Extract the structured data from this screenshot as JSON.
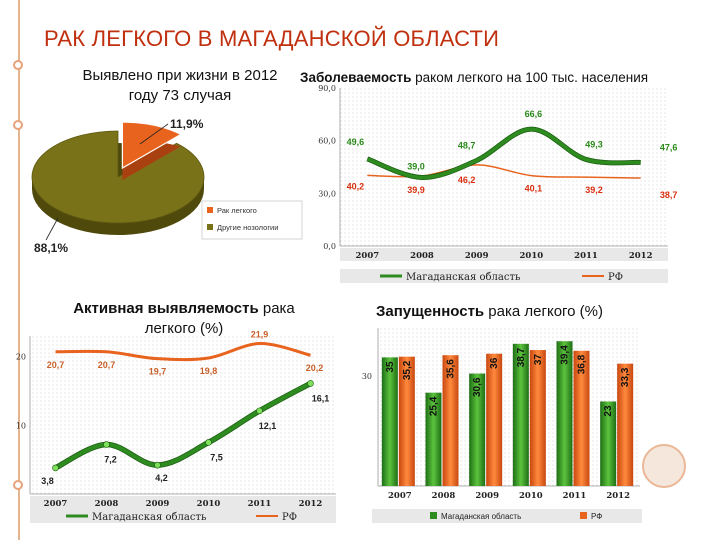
{
  "title": "РАК ЛЕГКОГО В МАГАДАНСКОЙ ОБЛАСТИ",
  "captions": {
    "pie_line1": "Выявлено при жизни в 2012",
    "pie_line2": "году 73 случая",
    "incidence_bold": "Заболеваемость",
    "incidence_rest": " раком легкого на 100 тыс. населения",
    "active_bold": "Активная выявляемость",
    "active_rest1": " рака",
    "active_rest2": "легкого (%)",
    "neglect_bold": "Запущенность",
    "neglect_rest": " рака легкого (%)"
  },
  "colors": {
    "accent_title": "#c0300f",
    "series_region": "#2e8b1f",
    "series_rf": "#e8641e",
    "pie_main": "#7a7218",
    "pie_slice": "#e8641e"
  },
  "chart_data": [
    {
      "type": "pie",
      "slices": [
        {
          "label": "Рак легкого",
          "value": 11.9,
          "value_label": "11,9%"
        },
        {
          "label": "Другие нозологии",
          "value": 88.1,
          "value_label": "88,1%"
        }
      ]
    },
    {
      "type": "line",
      "categories": [
        "2007",
        "2008",
        "2009",
        "2010",
        "2011",
        "2012"
      ],
      "yticks": [
        "0,0",
        "30,0",
        "60,0",
        "90,0"
      ],
      "ylim": [
        0,
        90
      ],
      "series": [
        {
          "name": "Магаданская область",
          "values": [
            49.6,
            39.0,
            48.7,
            66.6,
            49.3,
            47.6
          ],
          "labels": [
            "49,6",
            "39,0",
            "48,7",
            "66,6",
            "49,3",
            "47,6"
          ]
        },
        {
          "name": "РФ",
          "values": [
            40.2,
            39.9,
            46.2,
            40.1,
            39.2,
            38.7
          ],
          "labels": [
            "40,2",
            "39,9",
            "46,2",
            "40,1",
            "39,2",
            "38,7"
          ]
        }
      ]
    },
    {
      "type": "line",
      "categories": [
        "2007",
        "2008",
        "2009",
        "2010",
        "2011",
        "2012"
      ],
      "yticks": [
        "10",
        "20"
      ],
      "ylim": [
        0,
        23
      ],
      "series": [
        {
          "name": "Магаданская область",
          "values": [
            3.8,
            7.2,
            4.2,
            7.5,
            12.1,
            16.1
          ],
          "labels": [
            "3,8",
            "7,2",
            "4,2",
            "7,5",
            "12,1",
            "16,1"
          ]
        },
        {
          "name": "РФ",
          "values": [
            20.7,
            20.7,
            19.7,
            19.8,
            21.9,
            20.2
          ],
          "labels": [
            "20,7",
            "20,7",
            "19,7",
            "19,8",
            "21,9",
            "20,2"
          ]
        }
      ]
    },
    {
      "type": "bar",
      "categories": [
        "2007",
        "2008",
        "2009",
        "2010",
        "2011",
        "2012"
      ],
      "yticks": [
        "30"
      ],
      "ylim": [
        0,
        43
      ],
      "series": [
        {
          "name": "Магаданская область",
          "values": [
            35,
            25.4,
            30.6,
            38.7,
            39.4,
            23
          ],
          "labels": [
            "35",
            "25,4",
            "30,6",
            "38,7",
            "39,4",
            "23"
          ]
        },
        {
          "name": "РФ",
          "values": [
            35.2,
            35.6,
            36,
            37,
            36.8,
            33.3
          ],
          "labels": [
            "35,2",
            "35,6",
            "36",
            "37",
            "36,8",
            "33,3"
          ]
        }
      ]
    }
  ]
}
